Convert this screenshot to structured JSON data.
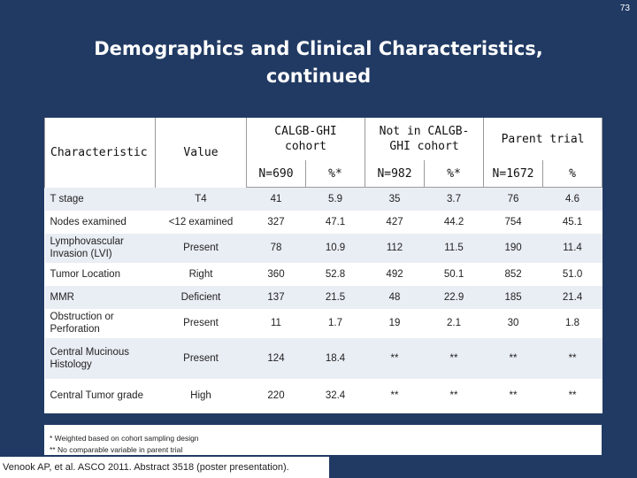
{
  "page_number": "73",
  "title": {
    "line1": "Demographics and Clinical Characteristics,",
    "line2": "continued"
  },
  "table": {
    "headers": {
      "characteristic": "Characteristic",
      "value": "Value",
      "group1": "CALGB-GHI cohort",
      "group2": "Not in CALGB-GHI cohort",
      "group3": "Parent trial",
      "sub": [
        "N=690",
        "%*",
        "N=982",
        "%*",
        "N=1672",
        "%"
      ]
    },
    "rows": [
      {
        "label": "T stage",
        "value": "T4",
        "cells": [
          "41",
          "5.9",
          "35",
          "3.7",
          "76",
          "4.6"
        ]
      },
      {
        "label": "Nodes examined",
        "value": "<12 examined",
        "cells": [
          "327",
          "47.1",
          "427",
          "44.2",
          "754",
          "45.1"
        ]
      },
      {
        "label": "Lymphovascular Invasion (LVI)",
        "value": "Present",
        "cells": [
          "78",
          "10.9",
          "112",
          "11.5",
          "190",
          "11.4"
        ]
      },
      {
        "label": "Tumor Location",
        "value": "Right",
        "cells": [
          "360",
          "52.8",
          "492",
          "50.1",
          "852",
          "51.0"
        ]
      },
      {
        "label": "MMR",
        "value": "Deficient",
        "cells": [
          "137",
          "21.5",
          "48",
          "22.9",
          "185",
          "21.4"
        ]
      },
      {
        "label": "Obstruction or Perforation",
        "value": "Present",
        "cells": [
          "11",
          "1.7",
          "19",
          "2.1",
          "30",
          "1.8"
        ]
      },
      {
        "label": "Central Mucinous Histology",
        "value": "Present",
        "cells": [
          "124",
          "18.4",
          "**",
          "**",
          "**",
          "**"
        ]
      },
      {
        "label": "Central Tumor grade",
        "value": "High",
        "cells": [
          "220",
          "32.4",
          "**",
          "**",
          "**",
          "**"
        ]
      }
    ]
  },
  "footnotes": [
    "*   Weighted based on cohort sampling design",
    "**  No comparable variable in parent trial"
  ],
  "citation": "Venook AP, et al. ASCO 2011. Abstract 3518 (poster presentation)."
}
